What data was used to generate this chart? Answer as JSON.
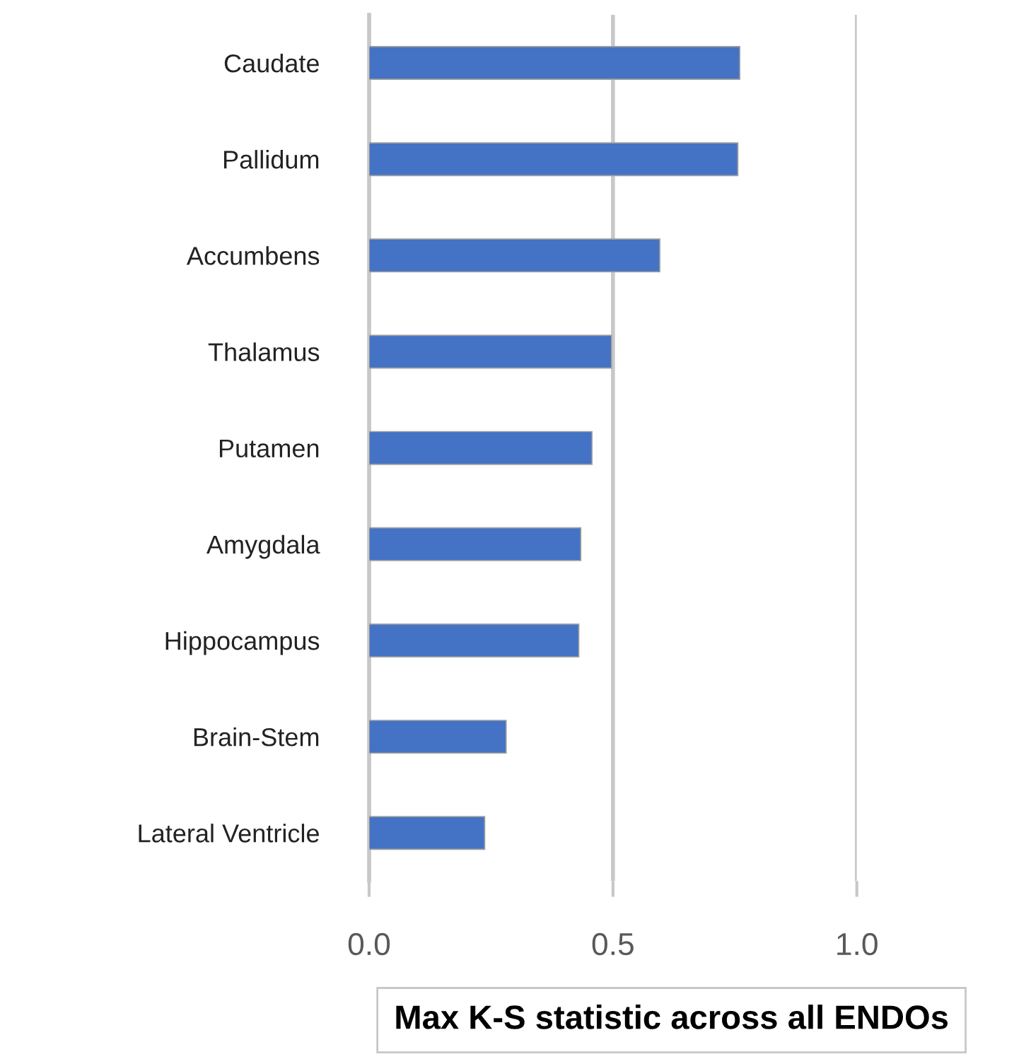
{
  "chart_data": {
    "type": "bar",
    "orientation": "horizontal",
    "xlabel": "Max K-S statistic across all ENDOs",
    "categories": [
      "Caudate",
      "Pallidum",
      "Accumbens",
      "Thalamus",
      "Putamen",
      "Amygdala",
      "Hippocampus",
      "Brain-Stem",
      "Lateral Ventricle"
    ],
    "values": [
      0.76,
      0.756,
      0.596,
      0.497,
      0.457,
      0.434,
      0.43,
      0.281,
      0.237
    ],
    "color": "#4472c4",
    "xlim": [
      0,
      1
    ],
    "xticks": [
      {
        "value": 0,
        "label": "0.0"
      },
      {
        "value": 0.5,
        "label": "0.5"
      },
      {
        "value": 1,
        "label": "1.0"
      }
    ],
    "grid": "x",
    "legend": false
  }
}
